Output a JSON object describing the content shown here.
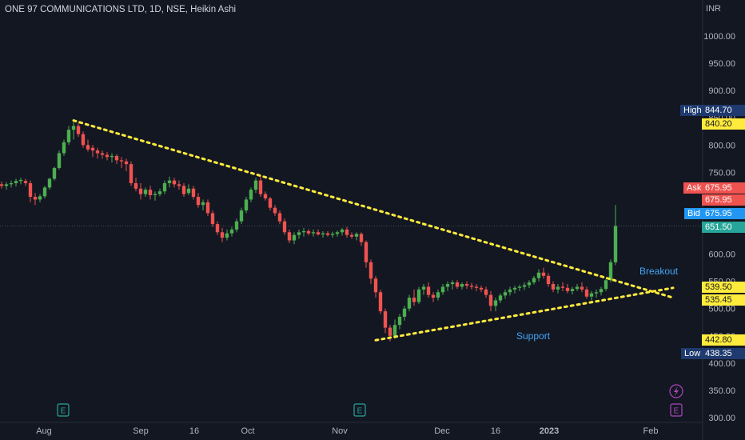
{
  "header": {
    "title": "ONE 97 COMMUNICATIONS LTD, 1D, NSE, Heikin Ashi",
    "currency": "INR"
  },
  "colors": {
    "background": "#131722",
    "up": "#26a69a",
    "up_candle": "#4caf50",
    "down": "#ef5350",
    "trendline": "#ffeb3b",
    "annotation": "#42a5f5",
    "axis_text": "#b2b5be"
  },
  "price_labels": {
    "high": {
      "label": "High",
      "value": "844.70"
    },
    "mark_840": "840.20",
    "ask": {
      "label": "Ask",
      "value": "675.95"
    },
    "last": "675.95",
    "bid": {
      "label": "Bid",
      "value": "675.95"
    },
    "current": "651.50",
    "mark_539": "539.50",
    "mark_535": "535.45",
    "mark_442": "442.80",
    "low": {
      "label": "Low",
      "value": "438.35"
    }
  },
  "annotations": {
    "breakout": "Breakout",
    "support": "Support"
  },
  "event_icons": [
    "earnings-icon",
    "earnings-icon",
    "earnings-icon",
    "lightning-icon"
  ],
  "chart_data": {
    "type": "candlestick",
    "title": "ONE 97 COMMUNICATIONS LTD, 1D, NSE, Heikin Ashi",
    "y_axis": {
      "ticks": [
        1000,
        950,
        900,
        850,
        800,
        750,
        700,
        650,
        600,
        550,
        500,
        450,
        400,
        350,
        300
      ],
      "tick_labels": [
        "1000.00",
        "950.00",
        "900.00",
        "850.00",
        "800.00",
        "750.00",
        "700.00",
        "650.00",
        "600.00",
        "550.00",
        "500.00",
        "450.00",
        "400.00",
        "350.00",
        "300.00"
      ],
      "range": [
        295,
        1030
      ]
    },
    "x_axis": {
      "tick_labels": [
        "Aug",
        "Sep",
        "16",
        "Oct",
        "Nov",
        "Dec",
        "16",
        "2023",
        "Feb"
      ]
    },
    "grid": false,
    "candles": [
      [
        728,
        733,
        720,
        725
      ],
      [
        725,
        732,
        718,
        728
      ],
      [
        728,
        735,
        722,
        730
      ],
      [
        730,
        738,
        724,
        734
      ],
      [
        734,
        740,
        728,
        736
      ],
      [
        734,
        738,
        725,
        730
      ],
      [
        730,
        735,
        695,
        705
      ],
      [
        705,
        712,
        690,
        700
      ],
      [
        700,
        710,
        695,
        706
      ],
      [
        706,
        725,
        702,
        722
      ],
      [
        722,
        740,
        718,
        738
      ],
      [
        738,
        760,
        735,
        758
      ],
      [
        758,
        790,
        755,
        785
      ],
      [
        785,
        810,
        780,
        805
      ],
      [
        805,
        835,
        800,
        828
      ],
      [
        828,
        842,
        810,
        835
      ],
      [
        835,
        840,
        815,
        820
      ],
      [
        820,
        825,
        795,
        800
      ],
      [
        800,
        810,
        788,
        792
      ],
      [
        795,
        800,
        778,
        790
      ],
      [
        790,
        795,
        775,
        785
      ],
      [
        785,
        790,
        775,
        782
      ],
      [
        782,
        787,
        772,
        778
      ],
      [
        778,
        785,
        768,
        780
      ],
      [
        780,
        783,
        765,
        772
      ],
      [
        772,
        778,
        758,
        770
      ],
      [
        770,
        775,
        752,
        765
      ],
      [
        765,
        770,
        725,
        730
      ],
      [
        730,
        740,
        715,
        720
      ],
      [
        720,
        730,
        700,
        710
      ],
      [
        710,
        722,
        705,
        718
      ],
      [
        718,
        725,
        700,
        708
      ],
      [
        708,
        715,
        698,
        710
      ],
      [
        710,
        720,
        706,
        715
      ],
      [
        715,
        735,
        710,
        730
      ],
      [
        730,
        742,
        722,
        735
      ],
      [
        735,
        740,
        722,
        728
      ],
      [
        728,
        735,
        718,
        725
      ],
      [
        725,
        730,
        705,
        710
      ],
      [
        712,
        728,
        708,
        720
      ],
      [
        720,
        725,
        700,
        705
      ],
      [
        705,
        712,
        685,
        690
      ],
      [
        690,
        700,
        680,
        695
      ],
      [
        695,
        700,
        670,
        675
      ],
      [
        675,
        680,
        650,
        655
      ],
      [
        655,
        660,
        635,
        640
      ],
      [
        640,
        648,
        622,
        630
      ],
      [
        630,
        645,
        625,
        638
      ],
      [
        638,
        650,
        632,
        645
      ],
      [
        645,
        665,
        640,
        660
      ],
      [
        660,
        685,
        655,
        680
      ],
      [
        680,
        705,
        675,
        700
      ],
      [
        700,
        722,
        695,
        718
      ],
      [
        718,
        740,
        712,
        735
      ],
      [
        735,
        742,
        705,
        710
      ],
      [
        710,
        715,
        698,
        702
      ],
      [
        702,
        705,
        680,
        685
      ],
      [
        685,
        690,
        670,
        675
      ],
      [
        675,
        680,
        655,
        660
      ],
      [
        660,
        665,
        635,
        640
      ],
      [
        640,
        645,
        620,
        625
      ],
      [
        625,
        640,
        618,
        635
      ],
      [
        635,
        645,
        628,
        640
      ],
      [
        640,
        648,
        632,
        642
      ],
      [
        642,
        646,
        634,
        638
      ],
      [
        638,
        645,
        632,
        640
      ],
      [
        640,
        645,
        634,
        636
      ],
      [
        636,
        642,
        630,
        638
      ],
      [
        638,
        642,
        632,
        635
      ],
      [
        635,
        641,
        630,
        637
      ],
      [
        637,
        643,
        632,
        640
      ],
      [
        640,
        648,
        634,
        645
      ],
      [
        645,
        650,
        630,
        635
      ],
      [
        635,
        640,
        628,
        632
      ],
      [
        632,
        640,
        625,
        637
      ],
      [
        637,
        640,
        615,
        622
      ],
      [
        622,
        625,
        575,
        585
      ],
      [
        585,
        590,
        545,
        555
      ],
      [
        555,
        560,
        520,
        530
      ],
      [
        530,
        535,
        490,
        495
      ],
      [
        495,
        500,
        455,
        465
      ],
      [
        465,
        470,
        440,
        450
      ],
      [
        450,
        480,
        445,
        470
      ],
      [
        470,
        490,
        462,
        485
      ],
      [
        485,
        505,
        478,
        500
      ],
      [
        500,
        525,
        495,
        520
      ],
      [
        520,
        535,
        505,
        512
      ],
      [
        512,
        540,
        508,
        535
      ],
      [
        535,
        545,
        525,
        540
      ],
      [
        540,
        548,
        520,
        525
      ],
      [
        525,
        530,
        512,
        520
      ],
      [
        520,
        535,
        515,
        530
      ],
      [
        530,
        545,
        525,
        540
      ],
      [
        540,
        550,
        532,
        545
      ],
      [
        545,
        552,
        535,
        548
      ],
      [
        548,
        552,
        536,
        540
      ],
      [
        540,
        548,
        535,
        545
      ],
      [
        545,
        550,
        536,
        542
      ],
      [
        542,
        547,
        535,
        540
      ],
      [
        540,
        545,
        532,
        538
      ],
      [
        538,
        542,
        530,
        535
      ],
      [
        535,
        540,
        520,
        525
      ],
      [
        525,
        532,
        495,
        505
      ],
      [
        505,
        520,
        495,
        515
      ],
      [
        515,
        528,
        510,
        524
      ],
      [
        524,
        535,
        518,
        530
      ],
      [
        530,
        540,
        524,
        535
      ],
      [
        535,
        542,
        528,
        538
      ],
      [
        538,
        544,
        532,
        540
      ],
      [
        540,
        548,
        534,
        543
      ],
      [
        543,
        552,
        538,
        548
      ],
      [
        548,
        560,
        544,
        556
      ],
      [
        556,
        572,
        550,
        566
      ],
      [
        566,
        575,
        555,
        560
      ],
      [
        560,
        565,
        540,
        545
      ],
      [
        545,
        550,
        530,
        535
      ],
      [
        535,
        545,
        528,
        540
      ],
      [
        540,
        548,
        532,
        538
      ],
      [
        538,
        545,
        528,
        532
      ],
      [
        532,
        540,
        526,
        536
      ],
      [
        536,
        545,
        532,
        540
      ],
      [
        540,
        548,
        530,
        535
      ],
      [
        535,
        540,
        518,
        522
      ],
      [
        522,
        532,
        515,
        528
      ],
      [
        528,
        535,
        520,
        530
      ],
      [
        530,
        540,
        524,
        536
      ],
      [
        536,
        555,
        532,
        552
      ],
      [
        552,
        590,
        548,
        585
      ],
      [
        585,
        690,
        580,
        651.5
      ]
    ],
    "trendlines": [
      {
        "name": "resistance",
        "from": {
          "index": 15,
          "price": 845
        },
        "to": {
          "index": 140,
          "price": 520
        }
      },
      {
        "name": "support",
        "from": {
          "index": 78,
          "price": 442
        },
        "to": {
          "index": 140,
          "price": 538
        }
      }
    ],
    "current_price_line": 651.5
  }
}
